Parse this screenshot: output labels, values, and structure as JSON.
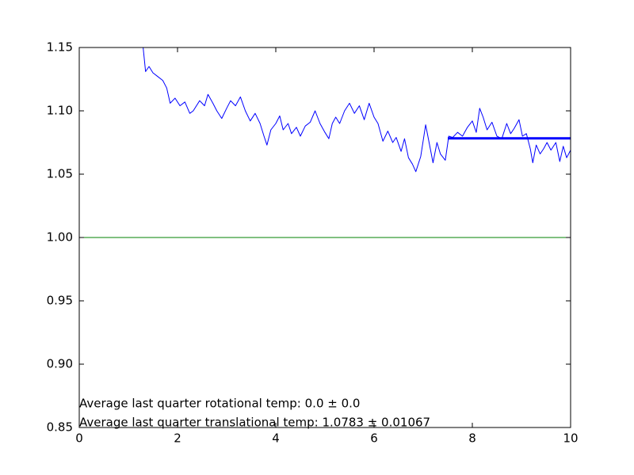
{
  "chart_data": {
    "type": "line",
    "xlim": [
      0,
      10
    ],
    "ylim": [
      0.85,
      1.15
    ],
    "xticks": [
      0,
      2,
      4,
      6,
      8,
      10
    ],
    "yticks": [
      1.15,
      {
        "value": 1.1,
        "label": "1.10"
      },
      1.05,
      {
        "value": 1.0,
        "label": "1.00"
      },
      0.95,
      {
        "value": 0.9,
        "label": "0.90"
      },
      0.85
    ],
    "series": [
      {
        "color": "#0000ff",
        "linewidth": 1,
        "x": [
          1.25,
          1.3,
          1.35,
          1.42,
          1.5,
          1.6,
          1.7,
          1.78,
          1.85,
          1.95,
          2.05,
          2.15,
          2.25,
          2.32,
          2.45,
          2.55,
          2.62,
          2.72,
          2.8,
          2.9,
          3.0,
          3.08,
          3.18,
          3.28,
          3.38,
          3.48,
          3.58,
          3.68,
          3.76,
          3.82,
          3.9,
          4.0,
          4.08,
          4.15,
          4.25,
          4.32,
          4.42,
          4.5,
          4.6,
          4.7,
          4.8,
          4.9,
          5.0,
          5.08,
          5.15,
          5.22,
          5.3,
          5.4,
          5.5,
          5.6,
          5.7,
          5.8,
          5.9,
          6.0,
          6.08,
          6.18,
          6.28,
          6.38,
          6.45,
          6.55,
          6.62,
          6.7,
          6.78,
          6.85,
          6.95,
          7.05,
          7.12,
          7.2,
          7.28,
          7.35,
          7.45,
          7.52,
          7.6,
          7.7,
          7.8,
          7.9,
          8.0,
          8.08,
          8.15,
          8.22,
          8.3,
          8.4,
          8.5,
          8.6,
          8.7,
          8.78,
          8.85,
          8.95,
          9.02,
          9.1,
          9.18,
          9.23,
          9.3,
          9.38,
          9.45,
          9.52,
          9.6,
          9.7,
          9.78,
          9.85,
          9.92,
          10.0
        ],
        "values": [
          1.165,
          1.15,
          1.131,
          1.135,
          1.13,
          1.127,
          1.124,
          1.118,
          1.106,
          1.11,
          1.104,
          1.107,
          1.098,
          1.1,
          1.108,
          1.104,
          1.113,
          1.106,
          1.1,
          1.094,
          1.102,
          1.108,
          1.104,
          1.111,
          1.1,
          1.092,
          1.098,
          1.09,
          1.08,
          1.073,
          1.085,
          1.09,
          1.096,
          1.085,
          1.09,
          1.082,
          1.087,
          1.08,
          1.088,
          1.091,
          1.1,
          1.09,
          1.083,
          1.078,
          1.09,
          1.095,
          1.09,
          1.1,
          1.106,
          1.098,
          1.104,
          1.093,
          1.106,
          1.095,
          1.09,
          1.076,
          1.084,
          1.075,
          1.079,
          1.068,
          1.078,
          1.063,
          1.058,
          1.052,
          1.064,
          1.089,
          1.075,
          1.059,
          1.075,
          1.066,
          1.061,
          1.08,
          1.079,
          1.083,
          1.08,
          1.087,
          1.092,
          1.083,
          1.102,
          1.095,
          1.085,
          1.091,
          1.08,
          1.078,
          1.09,
          1.082,
          1.086,
          1.093,
          1.08,
          1.082,
          1.07,
          1.059,
          1.073,
          1.066,
          1.07,
          1.075,
          1.069,
          1.075,
          1.06,
          1.072,
          1.063,
          1.069
        ]
      },
      {
        "color": "#008000",
        "linewidth": 1,
        "x": [
          0,
          10
        ],
        "values": [
          1.0,
          1.0
        ]
      },
      {
        "color": "#0000ff",
        "linewidth": 3,
        "x": [
          7.5,
          10
        ],
        "values": [
          1.0783,
          1.0783
        ]
      }
    ],
    "annotations": [
      "Average last quarter rotational temp: 0.0 ± 0.0",
      "Average last quarter translational temp: 1.0783 ± 0.01067"
    ]
  }
}
